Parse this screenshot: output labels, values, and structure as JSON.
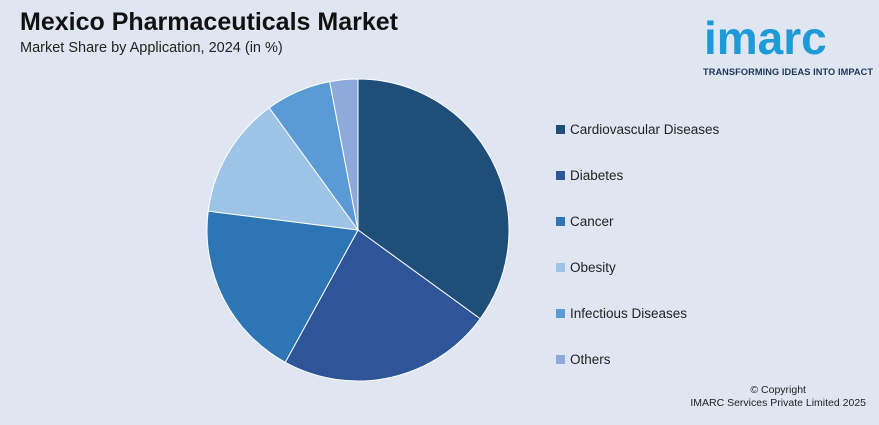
{
  "title": "Mexico Pharmaceuticals Market",
  "subtitle": "Market Share by Application, 2024 (in %)",
  "logo": {
    "word": "imarc",
    "tagline": "TRANSFORMING IDEAS INTO IMPACT",
    "color": "#1e9ad6"
  },
  "footer": {
    "line1": "© Copyright",
    "line2": "IMARC Services Private Limited 2025"
  },
  "chart_data": {
    "type": "pie",
    "title": "Mexico Pharmaceuticals Market",
    "subtitle": "Market Share by Application, 2024 (in %)",
    "legend_position": "right",
    "slices": [
      {
        "label": "Cardiovascular Diseases",
        "value": 35,
        "color": "#1f4e79"
      },
      {
        "label": "Diabetes",
        "value": 23,
        "color": "#2e5597"
      },
      {
        "label": "Cancer",
        "value": 19,
        "color": "#2e75b6"
      },
      {
        "label": "Obesity",
        "value": 13,
        "color": "#9dc3e6"
      },
      {
        "label": "Infectious Diseases",
        "value": 7,
        "color": "#5b9bd5"
      },
      {
        "label": "Others",
        "value": 3,
        "color": "#8eaadb"
      }
    ]
  }
}
